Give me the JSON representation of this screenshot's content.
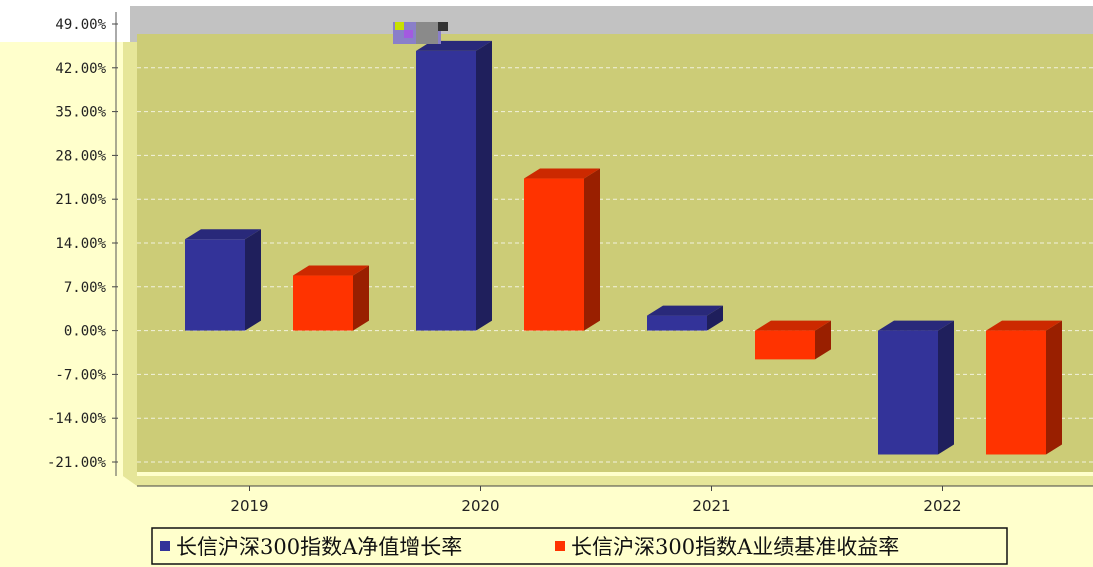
{
  "chart_data": {
    "type": "bar",
    "categories": [
      "2019",
      "2020",
      "2021",
      "2022"
    ],
    "series": [
      {
        "name": "长信沪深300指数A净值增长率",
        "color": "#333399",
        "values": [
          14.6,
          44.7,
          2.4,
          -19.8
        ]
      },
      {
        "name": "长信沪深300指数A业绩基准收益率",
        "color": "#ff3300",
        "values": [
          8.8,
          24.3,
          -4.6,
          -19.8
        ]
      }
    ],
    "y_ticks": [
      "49.00%",
      "42.00%",
      "35.00%",
      "28.00%",
      "21.00%",
      "14.00%",
      "7.00%",
      "0.00%",
      "-7.00%",
      "-14.00%",
      "-21.00%"
    ],
    "ylim": [
      -21,
      49
    ],
    "grid": true,
    "legend_position": "bottom",
    "colors": {
      "plot_wall": "#cccc77",
      "page_background": "#ffffcc",
      "side_wall": "#e6e699"
    }
  }
}
